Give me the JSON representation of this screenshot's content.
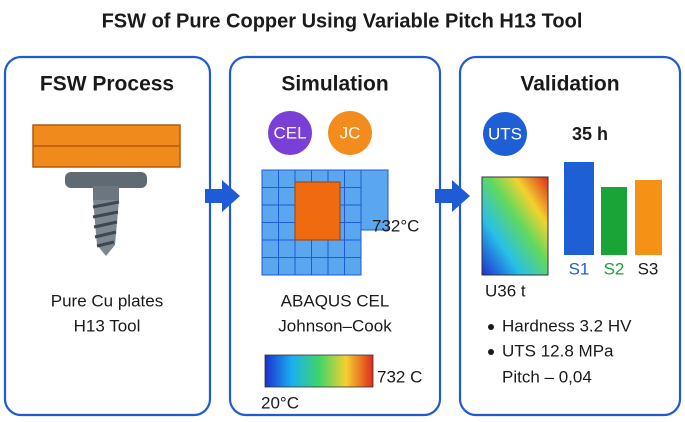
{
  "title": "FSW of Pure Copper Using Variable Pitch H13 Tool",
  "panels": [
    {
      "title": "FSW Process",
      "lines": [
        "Pure Cu plates",
        "H13 Tool"
      ]
    },
    {
      "title": "Simulation",
      "badges": [
        "CEL",
        "JC"
      ],
      "mesh_label": "732°C",
      "lines": [
        "ABAQUS CEL",
        "Johnson–Cook"
      ],
      "colorbar_max": "732 C",
      "colorbar_min": "20°C"
    },
    {
      "title": "Validation",
      "badge": "UTS",
      "time_label": "35 h",
      "contour_label": "U36 t",
      "bar_labels": [
        "S1",
        "S2",
        "S3"
      ],
      "bullets": [
        "Hardness 3.2 HV",
        "UTS 12.8 MPa"
      ],
      "note": "Pitch – 0,04"
    }
  ]
}
